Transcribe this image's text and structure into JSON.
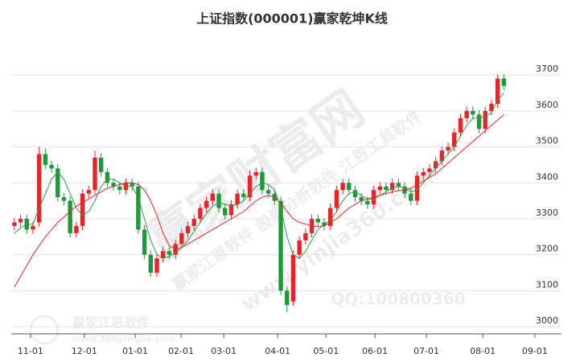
{
  "chart_data": {
    "type": "candlestick",
    "title": "上证指数(000001)赢家乾坤K线",
    "watermarks": [
      "赢家财富网",
      "赢家江恩软件 股票分析软件 江恩工具软件",
      "www.yinjia360.com",
      "QQ:100800360"
    ],
    "logo": {
      "name": "赢家江恩软件",
      "url": "www.360yingjia.com"
    },
    "up_color": "#e8232a",
    "down_color": "#1a9a3a",
    "grid": true,
    "xlim": [
      -0.5,
      88.3
    ],
    "xticks": [
      {
        "value": 2.6,
        "label": "11-01"
      },
      {
        "value": 11.3,
        "label": "12-01"
      },
      {
        "value": 19.5,
        "label": "01-01"
      },
      {
        "value": 26.9,
        "label": "02-01"
      },
      {
        "value": 33.8,
        "label": "03-01"
      },
      {
        "value": 42.5,
        "label": "04-01"
      },
      {
        "value": 50.3,
        "label": "05-01"
      },
      {
        "value": 58.2,
        "label": "06-01"
      },
      {
        "value": 66.5,
        "label": "07-01"
      },
      {
        "value": 75.6,
        "label": "08-01"
      },
      {
        "value": 84.0,
        "label": "09-01"
      }
    ],
    "ylim": [
      2980,
      3790
    ],
    "yticks": [
      3000,
      3100,
      3200,
      3300,
      3400,
      3500,
      3600,
      3700
    ],
    "series": [
      {
        "open": [
          3280,
          3290,
          3300,
          3270,
          3290,
          3480,
          3450,
          3440,
          3360,
          3350,
          3260,
          3280,
          3370,
          3380,
          3470,
          3430,
          3400,
          3390,
          3380,
          3400,
          3390,
          3270,
          3200,
          3150,
          3190,
          3210,
          3200,
          3230,
          3260,
          3280,
          3300,
          3330,
          3350,
          3370,
          3330,
          3310,
          3340,
          3370,
          3360,
          3420,
          3430,
          3380,
          3370,
          3350,
          3100,
          3070,
          3200,
          3240,
          3260,
          3300,
          3290,
          3280,
          3330,
          3380,
          3400,
          3380,
          3360,
          3350,
          3340,
          3380,
          3390,
          3380,
          3400,
          3390,
          3370,
          3350,
          3420,
          3430,
          3440,
          3460,
          3490,
          3500,
          3540,
          3580,
          3600,
          3590,
          3550,
          3600,
          3620,
          3690
        ],
        "close": [
          3290,
          3300,
          3270,
          3280,
          3480,
          3450,
          3440,
          3360,
          3350,
          3260,
          3280,
          3370,
          3380,
          3470,
          3430,
          3400,
          3390,
          3380,
          3400,
          3390,
          3270,
          3200,
          3150,
          3190,
          3210,
          3200,
          3230,
          3260,
          3280,
          3300,
          3330,
          3350,
          3370,
          3330,
          3310,
          3340,
          3370,
          3360,
          3420,
          3430,
          3380,
          3370,
          3350,
          3100,
          3060,
          3200,
          3240,
          3260,
          3300,
          3290,
          3280,
          3330,
          3380,
          3400,
          3380,
          3360,
          3350,
          3340,
          3380,
          3390,
          3380,
          3400,
          3390,
          3370,
          3350,
          3420,
          3430,
          3440,
          3460,
          3490,
          3500,
          3540,
          3580,
          3600,
          3590,
          3550,
          3600,
          3620,
          3690,
          3670
        ],
        "high": [
          3302,
          3312,
          3312,
          3292,
          3500,
          3495,
          3462,
          3452,
          3372,
          3362,
          3292,
          3382,
          3392,
          3490,
          3482,
          3442,
          3412,
          3402,
          3412,
          3412,
          3402,
          3282,
          3212,
          3202,
          3222,
          3222,
          3242,
          3272,
          3292,
          3312,
          3342,
          3362,
          3382,
          3382,
          3342,
          3352,
          3382,
          3382,
          3435,
          3442,
          3442,
          3392,
          3382,
          3362,
          3112,
          3212,
          3252,
          3272,
          3312,
          3312,
          3302,
          3342,
          3392,
          3412,
          3412,
          3392,
          3372,
          3362,
          3392,
          3402,
          3402,
          3412,
          3412,
          3402,
          3382,
          3432,
          3442,
          3452,
          3472,
          3502,
          3512,
          3552,
          3592,
          3612,
          3612,
          3602,
          3612,
          3632,
          3702,
          3702
        ],
        "low": [
          3268,
          3278,
          3258,
          3258,
          3278,
          3438,
          3428,
          3348,
          3338,
          3248,
          3248,
          3268,
          3358,
          3368,
          3418,
          3388,
          3378,
          3368,
          3368,
          3378,
          3258,
          3188,
          3138,
          3138,
          3178,
          3188,
          3188,
          3218,
          3248,
          3268,
          3288,
          3318,
          3338,
          3318,
          3298,
          3298,
          3328,
          3348,
          3348,
          3408,
          3368,
          3358,
          3338,
          3088,
          3040,
          3058,
          3188,
          3228,
          3248,
          3278,
          3268,
          3268,
          3318,
          3368,
          3368,
          3348,
          3338,
          3328,
          3328,
          3368,
          3368,
          3368,
          3378,
          3358,
          3338,
          3338,
          3408,
          3418,
          3428,
          3448,
          3478,
          3488,
          3528,
          3568,
          3578,
          3538,
          3538,
          3588,
          3608,
          3658
        ]
      }
    ],
    "lines": [
      {
        "color": "#2e9e3e",
        "values": [
          3260,
          3275,
          3285,
          3285,
          3330,
          3370,
          3410,
          3430,
          3410,
          3370,
          3330,
          3310,
          3320,
          3350,
          3390,
          3410,
          3410,
          3400,
          3390,
          3390,
          3360,
          3300,
          3240,
          3200,
          3190,
          3195,
          3205,
          3220,
          3240,
          3265,
          3290,
          3315,
          3335,
          3345,
          3340,
          3335,
          3340,
          3350,
          3370,
          3390,
          3400,
          3395,
          3380,
          3330,
          3250,
          3200,
          3190,
          3210,
          3240,
          3270,
          3285,
          3295,
          3320,
          3350,
          3370,
          3375,
          3365,
          3355,
          3355,
          3365,
          3375,
          3385,
          3390,
          3385,
          3375,
          3380,
          3400,
          3420,
          3440,
          3460,
          3480,
          3500,
          3530,
          3560,
          3580,
          3580,
          3585,
          3595,
          3630,
          3650
        ]
      },
      {
        "color": "#e8232a",
        "values": [
          3110,
          3140,
          3170,
          3200,
          3225,
          3250,
          3270,
          3290,
          3305,
          3320,
          3335,
          3345,
          3355,
          3365,
          3375,
          3385,
          3390,
          3395,
          3400,
          3400,
          3395,
          3380,
          3350,
          3310,
          3260,
          3225,
          3215,
          3220,
          3230,
          3240,
          3250,
          3260,
          3270,
          3280,
          3290,
          3300,
          3310,
          3320,
          3335,
          3350,
          3360,
          3365,
          3360,
          3345,
          3320,
          3300,
          3290,
          3285,
          3280,
          3278,
          3280,
          3290,
          3300,
          3315,
          3330,
          3340,
          3350,
          3355,
          3360,
          3365,
          3370,
          3375,
          3378,
          3380,
          3385,
          3395,
          3405,
          3415,
          3425,
          3440,
          3455,
          3470,
          3485,
          3500,
          3515,
          3530,
          3545,
          3560,
          3575,
          3590
        ]
      }
    ]
  }
}
